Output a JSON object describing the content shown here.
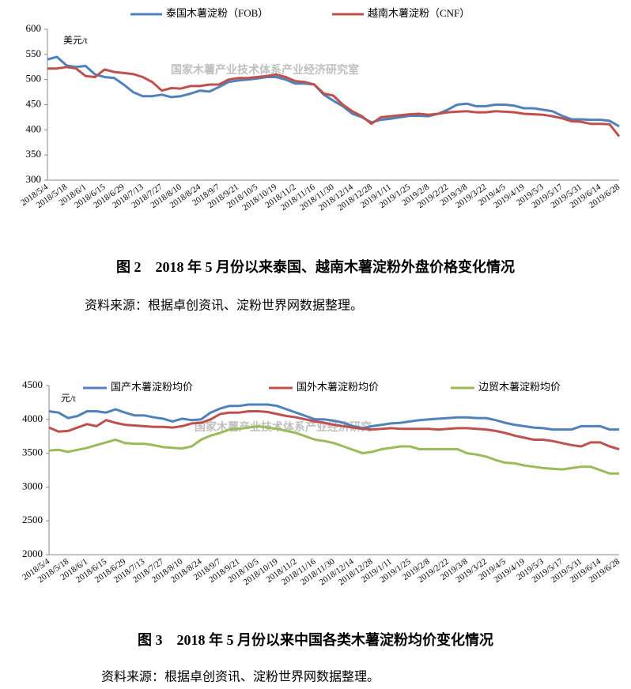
{
  "chart_data": [
    {
      "type": "line",
      "unit": "美元/t",
      "annotation": "国家木薯产业技术体系产业经济研究室",
      "caption": "图 2　2018 年 5 月份以来泰国、越南木薯淀粉外盘价格变化情况",
      "source": "资料来源：根据卓创资讯、淀粉世界网数据整理。",
      "categories": [
        "2018/5/4",
        null,
        "2018/5/18",
        null,
        "2018/6/1",
        null,
        "2018/6/15",
        null,
        "2018/6/29",
        null,
        "2018/7/13",
        null,
        "2018/7/27",
        null,
        "2018/8/10",
        null,
        "2018/8/24",
        null,
        "2018/9/7",
        null,
        "2018/9/21",
        null,
        "2018/10/5",
        null,
        "2018/10/19",
        null,
        "2018/11/2",
        null,
        "2018/11/16",
        null,
        "2018/11/30",
        null,
        "2018/12/14",
        null,
        "2018/12/28",
        null,
        "2019/1/11",
        null,
        "2019/1/25",
        null,
        "2019/2/8",
        null,
        "2019/2/22",
        null,
        "2019/3/8",
        null,
        "2019/3/22",
        null,
        "2019/4/5",
        null,
        "2019/4/19",
        null,
        "2019/5/3",
        null,
        "2019/5/17",
        null,
        "2019/5/31",
        null,
        "2019/6/14",
        null,
        "2019/6/28"
      ],
      "series": [
        {
          "name": "泰国木薯淀粉（FOB）",
          "color": "#4f81bd",
          "values": [
            540,
            545,
            528,
            525,
            527,
            510,
            505,
            503,
            490,
            475,
            467,
            467,
            470,
            465,
            467,
            472,
            478,
            476,
            485,
            495,
            498,
            500,
            502,
            505,
            505,
            500,
            492,
            492,
            490,
            470,
            458,
            447,
            432,
            425,
            415,
            420,
            422,
            425,
            428,
            428,
            427,
            432,
            440,
            450,
            452,
            447,
            447,
            450,
            450,
            448,
            443,
            443,
            440,
            437,
            428,
            421,
            421,
            420,
            420,
            418,
            407
          ]
        },
        {
          "name": "越南木薯淀粉（CNF）",
          "color": "#c0504d",
          "values": [
            522,
            522,
            525,
            522,
            507,
            505,
            520,
            515,
            513,
            511,
            505,
            495,
            478,
            483,
            482,
            487,
            487,
            490,
            490,
            500,
            503,
            503,
            505,
            507,
            510,
            505,
            497,
            495,
            490,
            472,
            468,
            450,
            437,
            427,
            412,
            425,
            427,
            429,
            431,
            432,
            430,
            432,
            435,
            436,
            437,
            435,
            435,
            437,
            436,
            435,
            432,
            431,
            430,
            427,
            423,
            417,
            416,
            412,
            412,
            411,
            387
          ]
        }
      ],
      "ylim": [
        300,
        600
      ],
      "yticks": [
        300,
        350,
        400,
        450,
        500,
        550,
        600
      ]
    },
    {
      "type": "line",
      "unit": "元/t",
      "annotation": "国家木薯产业技术体系产业经济研究",
      "caption": "图 3　2018 年 5 月份以来中国各类木薯淀粉均价变化情况",
      "source": "资料来源：根据卓创资讯、淀粉世界网数据整理。",
      "categories": [
        "2018/5/4",
        null,
        "2018/5/18",
        null,
        "2018/6/1",
        null,
        "2018/6/15",
        null,
        "2018/6/29",
        null,
        "2018/7/13",
        null,
        "2018/7/27",
        null,
        "2018/8/10",
        null,
        "2018/8/24",
        null,
        "2018/9/7",
        null,
        "2018/9/21",
        null,
        "2018/10/5",
        null,
        "2018/10/19",
        null,
        "2018/11/2",
        null,
        "2018/11/16",
        null,
        "2018/11/30",
        null,
        "2018/12/14",
        null,
        "2018/12/28",
        null,
        "2019/1/11",
        null,
        "2019/1/25",
        null,
        "2019/2/8",
        null,
        "2019/2/22",
        null,
        "2019/3/8",
        null,
        "2019/3/22",
        null,
        "2019/4/5",
        null,
        "2019/4/19",
        null,
        "2019/5/3",
        null,
        "2019/5/17",
        null,
        "2019/5/31",
        null,
        "2019/6/14",
        null,
        "2019/6/28"
      ],
      "series": [
        {
          "name": "国产木薯淀粉均价",
          "color": "#4f81bd",
          "values": [
            4120,
            4100,
            4020,
            4050,
            4120,
            4120,
            4100,
            4150,
            4100,
            4060,
            4060,
            4030,
            4010,
            3970,
            4010,
            3990,
            4000,
            4100,
            4160,
            4200,
            4200,
            4220,
            4220,
            4220,
            4200,
            4150,
            4100,
            4050,
            4000,
            4000,
            3980,
            3950,
            3900,
            3870,
            3900,
            3920,
            3940,
            3950,
            3970,
            3990,
            4000,
            4010,
            4020,
            4030,
            4030,
            4020,
            4020,
            3990,
            3950,
            3920,
            3900,
            3880,
            3870,
            3850,
            3850,
            3850,
            3900,
            3900,
            3900,
            3850,
            3850
          ]
        },
        {
          "name": "国外木薯淀粉均价",
          "color": "#c0504d",
          "values": [
            3880,
            3820,
            3830,
            3880,
            3930,
            3900,
            3990,
            3950,
            3920,
            3910,
            3900,
            3890,
            3890,
            3880,
            3900,
            3940,
            3950,
            4000,
            4080,
            4100,
            4100,
            4120,
            4120,
            4110,
            4080,
            4050,
            4030,
            4000,
            3970,
            3950,
            3920,
            3900,
            3880,
            3860,
            3850,
            3860,
            3870,
            3860,
            3860,
            3860,
            3860,
            3850,
            3860,
            3870,
            3870,
            3860,
            3850,
            3830,
            3800,
            3760,
            3730,
            3700,
            3700,
            3680,
            3650,
            3620,
            3600,
            3660,
            3660,
            3600,
            3560
          ]
        },
        {
          "name": "边贸木薯淀粉均价",
          "color": "#9bbb59",
          "values": [
            3540,
            3550,
            3520,
            3550,
            3580,
            3620,
            3660,
            3700,
            3650,
            3640,
            3640,
            3620,
            3590,
            3580,
            3570,
            3600,
            3700,
            3760,
            3800,
            3850,
            3860,
            3880,
            3900,
            3880,
            3860,
            3830,
            3800,
            3750,
            3700,
            3680,
            3650,
            3600,
            3550,
            3500,
            3520,
            3560,
            3580,
            3600,
            3600,
            3560,
            3560,
            3560,
            3560,
            3560,
            3500,
            3480,
            3450,
            3400,
            3360,
            3350,
            3320,
            3300,
            3280,
            3270,
            3260,
            3280,
            3300,
            3300,
            3250,
            3200,
            3200
          ]
        }
      ],
      "ylim": [
        2000,
        4500
      ],
      "yticks": [
        2000,
        2500,
        3000,
        3500,
        4000,
        4500
      ]
    }
  ]
}
